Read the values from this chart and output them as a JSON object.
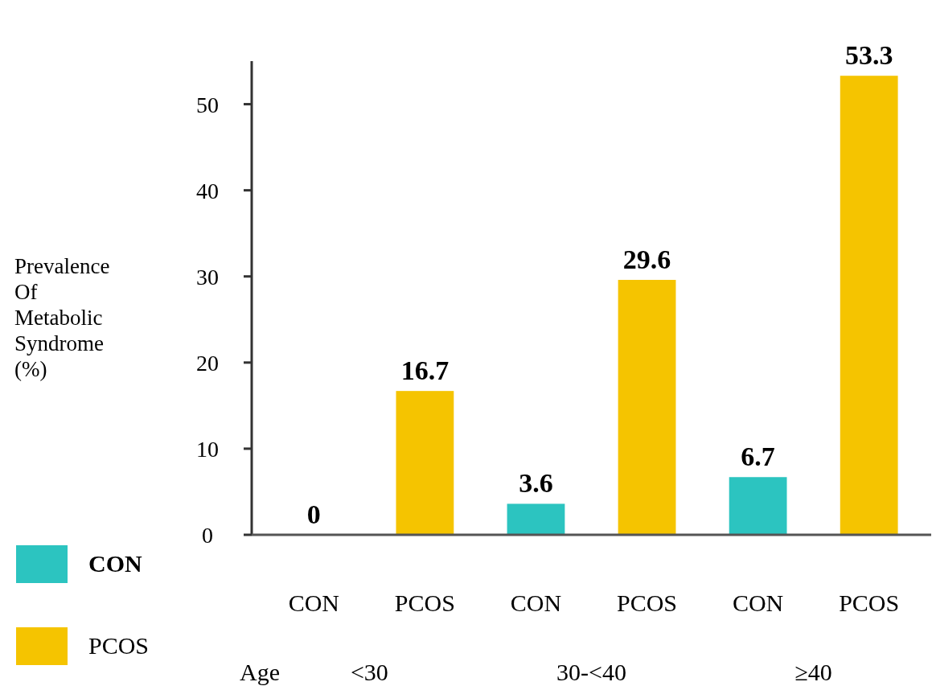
{
  "chart_data": {
    "type": "bar",
    "ylabel": "Prevalence Of Metabolic Syndrome (%)",
    "categories": [
      "CON",
      "PCOS",
      "CON",
      "PCOS",
      "CON",
      "PCOS"
    ],
    "series": [
      {
        "name": "CON",
        "color": "#2cc4c0",
        "values": [
          0,
          null,
          3.6,
          null,
          6.7,
          null
        ]
      },
      {
        "name": "PCOS",
        "color": "#f5c400",
        "values": [
          null,
          16.7,
          null,
          29.6,
          null,
          53.3
        ]
      }
    ],
    "ylim": [
      0,
      55
    ],
    "yticks": [
      0,
      10,
      20,
      30,
      40,
      50
    ],
    "data_labels": true,
    "legend": "bottom left",
    "grid": false,
    "annotations": [
      "Age",
      "<30",
      "30-<40",
      "≥40"
    ]
  }
}
